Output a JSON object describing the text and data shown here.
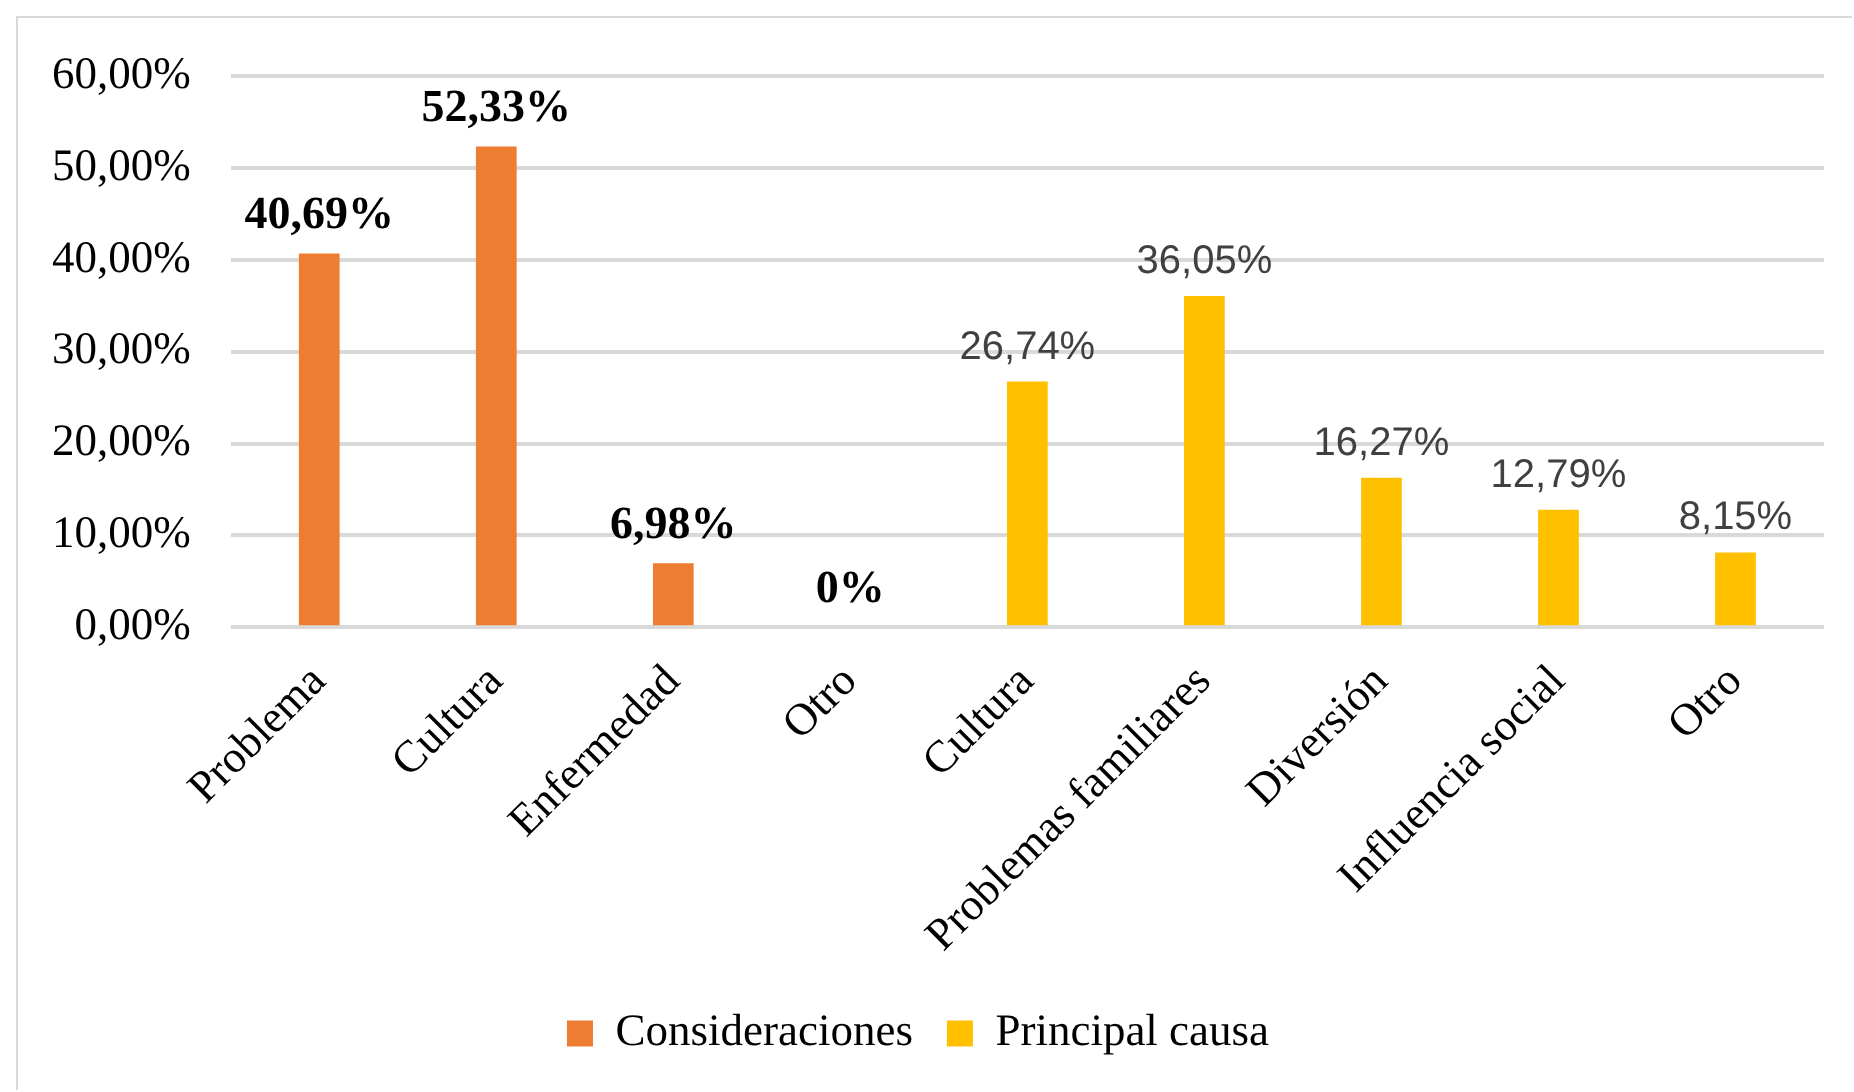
{
  "chart_data": {
    "type": "bar",
    "categories": [
      "Problema",
      "Cultura",
      "Enfermedad",
      "Otro",
      "Cultura",
      "Problemas familiares",
      "Diversión",
      "Influencia social",
      "Otro"
    ],
    "series": [
      {
        "name": "Consideraciones",
        "color": "#ed7d31",
        "values": [
          40.69,
          52.33,
          6.98,
          0,
          null,
          null,
          null,
          null,
          null
        ],
        "value_labels": [
          "40,69%",
          "52,33%",
          "6,98%",
          "0%",
          null,
          null,
          null,
          null,
          null
        ]
      },
      {
        "name": "Principal causa",
        "color": "#ffc000",
        "values": [
          null,
          null,
          null,
          null,
          26.74,
          36.05,
          16.27,
          12.79,
          8.15
        ],
        "value_labels": [
          null,
          null,
          null,
          null,
          "26,74%",
          "36,05%",
          "16,27%",
          "12,79%",
          "8,15%"
        ]
      }
    ],
    "ylim": [
      0,
      60
    ],
    "yticks": [
      {
        "value": 0,
        "label": "0,00%"
      },
      {
        "value": 10,
        "label": "10,00%"
      },
      {
        "value": 20,
        "label": "20,00%"
      },
      {
        "value": 30,
        "label": "30,00%"
      },
      {
        "value": 40,
        "label": "40,00%"
      },
      {
        "value": 50,
        "label": "50,00%"
      },
      {
        "value": 60,
        "label": "60,00%"
      }
    ],
    "grid": "y",
    "legend": "bottom"
  }
}
